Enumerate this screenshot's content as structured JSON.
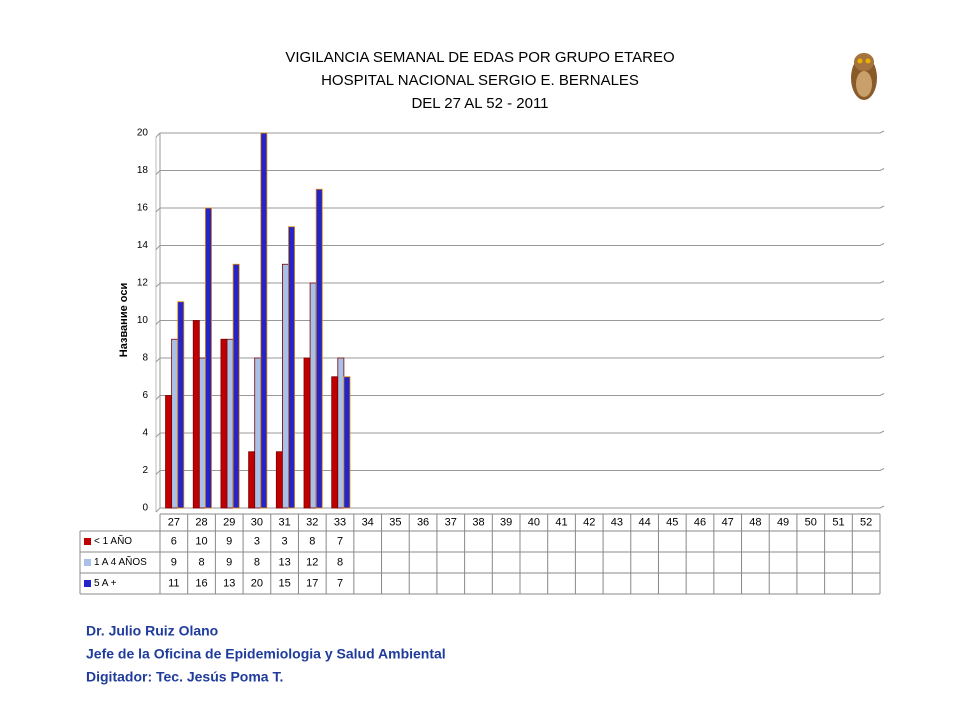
{
  "chart_data": {
    "type": "bar",
    "title": [
      "VIGILANCIA SEMANAL DE EDAS POR GRUPO ETAREO",
      "HOSPITAL NACIONAL SERGIO E. BERNALES",
      "DEL 27 AL 52 - 2011"
    ],
    "y_label": "Название оси",
    "categories": [
      "27",
      "28",
      "29",
      "30",
      "31",
      "32",
      "33",
      "34",
      "35",
      "36",
      "37",
      "38",
      "39",
      "40",
      "41",
      "42",
      "43",
      "44",
      "45",
      "46",
      "47",
      "48",
      "49",
      "50",
      "51",
      "52"
    ],
    "series": [
      {
        "name": "< 1 AÑO",
        "color": "#c00000",
        "values": [
          6,
          10,
          9,
          3,
          3,
          8,
          7,
          null,
          null,
          null,
          null,
          null,
          null,
          null,
          null,
          null,
          null,
          null,
          null,
          null,
          null,
          null,
          null,
          null,
          null,
          null
        ]
      },
      {
        "name": "1 A 4 AÑOS",
        "color": "#a9c0e8",
        "values": [
          9,
          8,
          9,
          8,
          13,
          12,
          8,
          null,
          null,
          null,
          null,
          null,
          null,
          null,
          null,
          null,
          null,
          null,
          null,
          null,
          null,
          null,
          null,
          null,
          null,
          null
        ]
      },
      {
        "name": "5 A +",
        "color": "#2424c8",
        "values": [
          11,
          16,
          13,
          20,
          15,
          17,
          7,
          null,
          null,
          null,
          null,
          null,
          null,
          null,
          null,
          null,
          null,
          null,
          null,
          null,
          null,
          null,
          null,
          null,
          null,
          null
        ]
      }
    ],
    "ylim": [
      0,
      20
    ],
    "yticks": [
      0,
      2,
      4,
      6,
      8,
      10,
      12,
      14,
      16,
      18,
      20
    ],
    "grid": true,
    "footer": [
      "Dr.  Julio Ruiz Olano",
      "Jefe de la Oficina de Epidemiologia y  Salud Ambiental",
      "Digitador: Tec. Jesús Poma T."
    ]
  }
}
